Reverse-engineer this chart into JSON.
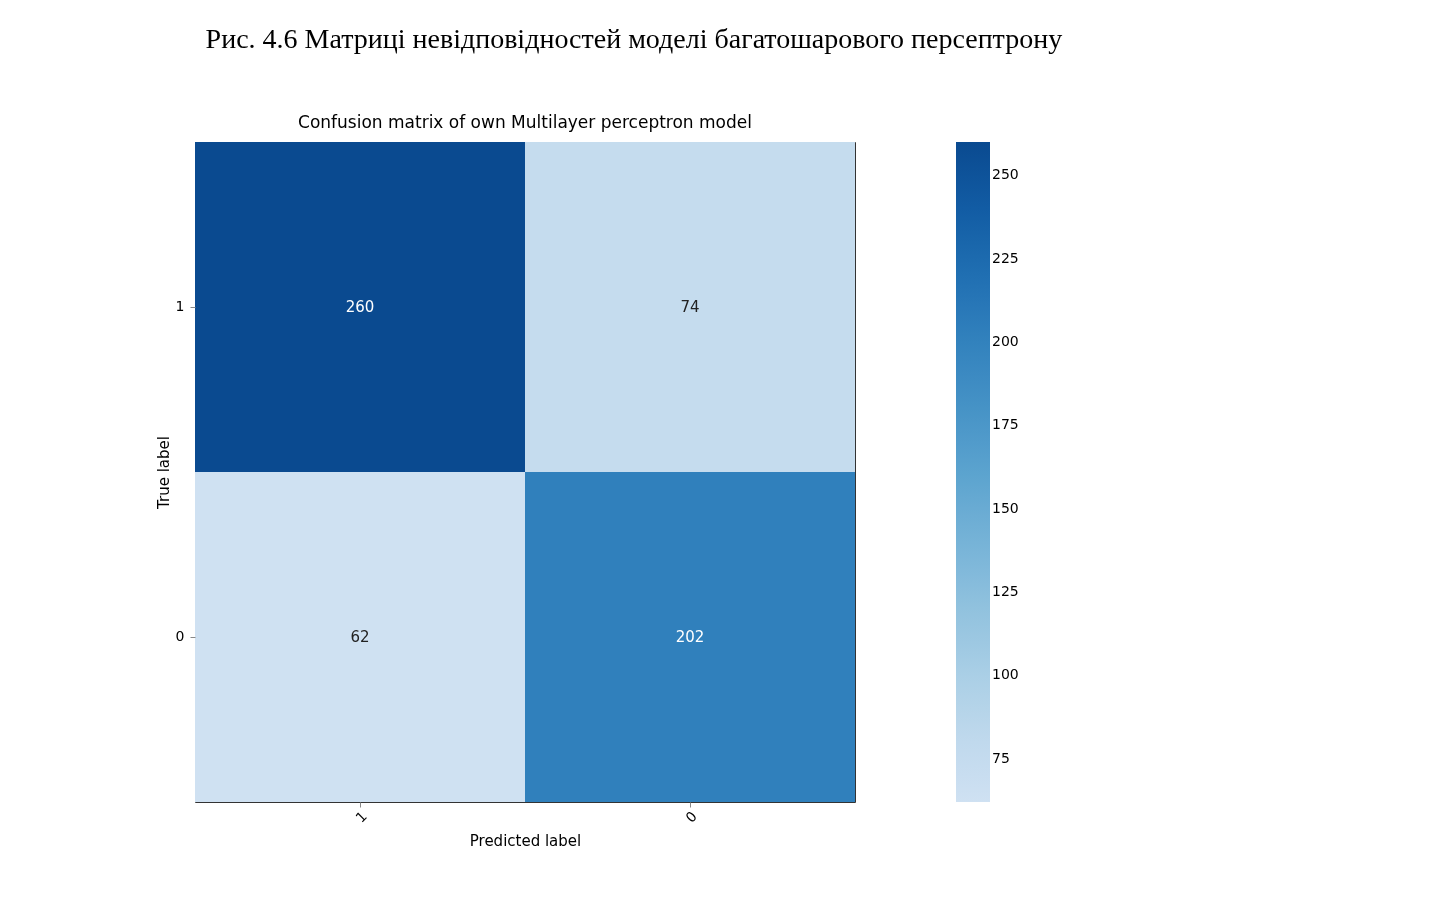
{
  "chart_data": {
    "type": "heatmap",
    "title": "Confusion matrix of own Multilayer perceptron model",
    "annotations": [
      "Рис. 4.6 Матриці невідповідностей моделі багатошарового персептрону"
    ],
    "xlabel": "Predicted label",
    "ylabel": "True label",
    "categories": [
      "1",
      "0"
    ],
    "y_categories": [
      "1",
      "0"
    ],
    "cells": [
      [
        260,
        74
      ],
      [
        62,
        202
      ]
    ],
    "data_labels": true,
    "clim": [
      62,
      260
    ],
    "cticks": [
      75,
      100,
      125,
      150,
      175,
      200,
      225,
      250
    ]
  }
}
